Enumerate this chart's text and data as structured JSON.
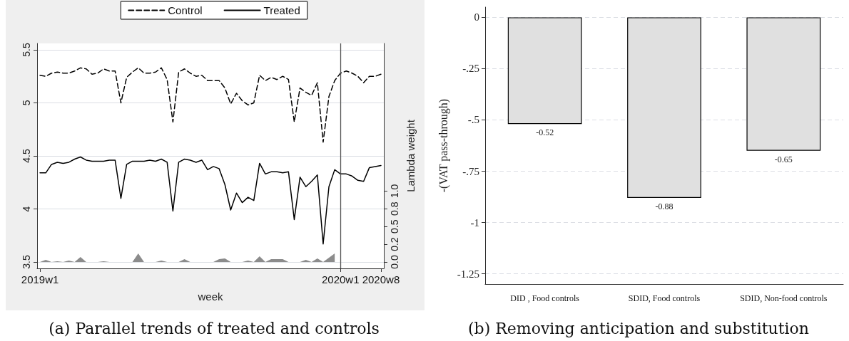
{
  "chart_data": [
    {
      "type": "line",
      "title": "(a) Parallel trends of treated and controls",
      "xlabel": "week",
      "y2label": "Lambda weight",
      "categories": [
        "2019w1",
        null,
        null,
        null,
        null,
        null,
        null,
        null,
        null,
        null,
        null,
        null,
        null,
        null,
        null,
        null,
        null,
        null,
        null,
        null,
        null,
        null,
        null,
        null,
        null,
        null,
        null,
        null,
        null,
        null,
        null,
        null,
        null,
        null,
        null,
        null,
        null,
        null,
        null,
        null,
        null,
        null,
        null,
        null,
        null,
        null,
        null,
        null,
        null,
        null,
        null,
        null,
        "2020w1",
        null,
        null,
        null,
        null,
        null,
        null,
        "2020w8"
      ],
      "ylim": [
        3.44,
        5.56
      ],
      "yticks": [
        3.5,
        4,
        4.5,
        5,
        5.5
      ],
      "y2lim": [
        -0.09,
        3.08
      ],
      "y2ticks": [
        {
          "value": 0,
          "label": "0.0"
        },
        {
          "value": 0.25,
          "label": "0.2"
        },
        {
          "value": 0.5,
          "label": "0.5"
        },
        {
          "value": 0.75,
          "label": "0.8"
        },
        {
          "value": 1,
          "label": "1.0"
        }
      ],
      "series": [
        {
          "name": "Control",
          "color": "#000000",
          "line_style": "dashed",
          "values": [
            5.26,
            5.25,
            5.28,
            5.29,
            5.28,
            5.28,
            5.3,
            5.33,
            5.32,
            5.27,
            5.28,
            5.32,
            5.3,
            5.3,
            5.0,
            5.24,
            5.29,
            5.33,
            5.28,
            5.28,
            5.29,
            5.33,
            5.22,
            4.82,
            5.29,
            5.32,
            5.28,
            5.25,
            5.26,
            5.21,
            5.21,
            5.21,
            5.14,
            4.99,
            5.09,
            5.02,
            4.98,
            5.0,
            5.26,
            5.21,
            5.24,
            5.22,
            5.25,
            5.22,
            4.82,
            5.14,
            5.1,
            5.07,
            5.19,
            4.63,
            5.06,
            5.21,
            5.28,
            5.3,
            5.28,
            5.25,
            5.19,
            5.25,
            5.25,
            5.27
          ]
        },
        {
          "name": "Treated",
          "color": "#000000",
          "line_style": "solid",
          "values": [
            4.34,
            4.34,
            4.42,
            4.44,
            4.43,
            4.44,
            4.47,
            4.49,
            4.46,
            4.45,
            4.45,
            4.45,
            4.46,
            4.46,
            4.1,
            4.42,
            4.45,
            4.45,
            4.45,
            4.46,
            4.45,
            4.47,
            4.44,
            3.98,
            4.44,
            4.47,
            4.46,
            4.44,
            4.46,
            4.37,
            4.4,
            4.38,
            4.23,
            3.99,
            4.15,
            4.06,
            4.11,
            4.08,
            4.43,
            4.33,
            4.35,
            4.35,
            4.34,
            4.35,
            3.9,
            4.3,
            4.21,
            4.26,
            4.32,
            3.67,
            4.21,
            4.37,
            4.33,
            4.33,
            4.31,
            4.27,
            4.26,
            4.39,
            4.4,
            4.41
          ]
        },
        {
          "type": "area",
          "axis": "y2",
          "color": "#8c8c8c",
          "values": [
            0,
            0.03,
            0,
            0.01,
            0,
            0.02,
            0,
            0.07,
            0,
            0,
            0,
            0.01,
            0,
            0,
            0,
            0,
            0,
            0.12,
            0,
            0,
            0,
            0.02,
            0,
            0,
            0,
            0.04,
            0,
            0,
            0,
            0,
            0,
            0.04,
            0.05,
            0,
            0,
            0,
            0.02,
            0,
            0.08,
            0,
            0.04,
            0.04,
            0.04,
            0,
            0,
            0,
            0.03,
            0,
            0.05,
            0,
            0.06,
            0.12,
            null,
            null,
            null,
            null,
            null,
            null,
            null,
            null
          ]
        }
      ],
      "ref_lines": [
        {
          "axis": "x",
          "value": "2020w1",
          "color": "#555555"
        }
      ],
      "grid": "y",
      "legend": "top",
      "marker": "none"
    },
    {
      "type": "bar",
      "title": "(b) Removing anticipation and substitution",
      "ylabel": "-(VAT pass-through)",
      "categories": [
        "DID , Food controls",
        "SDID, Food controls",
        "SDID, Non-food controls"
      ],
      "values": [
        -0.52,
        -0.88,
        -0.65
      ],
      "color": "#e0e0e0",
      "ylim": [
        -1.3,
        0.05
      ],
      "yticks": [
        {
          "value": -1.25,
          "label": "-1.25"
        },
        {
          "value": -1,
          "label": "-1"
        },
        {
          "value": -0.75,
          "label": "-.75"
        },
        {
          "value": -0.5,
          "label": "-.5"
        },
        {
          "value": -0.25,
          "label": "-.25"
        },
        0
      ],
      "grid": "y",
      "data_labels": true
    }
  ]
}
